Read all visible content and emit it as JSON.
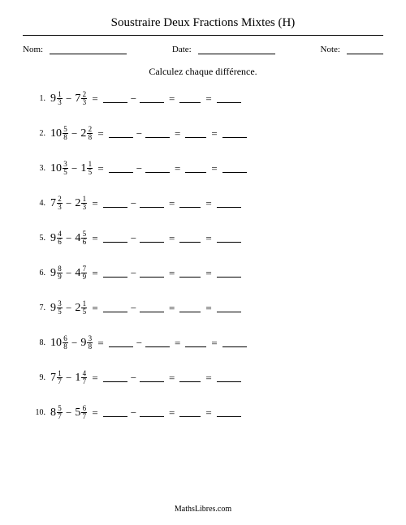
{
  "title": "Soustraire Deux Fractions Mixtes (H)",
  "header": {
    "nom_label": "Nom:",
    "date_label": "Date:",
    "note_label": "Note:"
  },
  "instruction": "Calculez chaque différence.",
  "symbols": {
    "minus": "−",
    "equals": "="
  },
  "problems": [
    {
      "n": "1.",
      "a_whole": "9",
      "a_num": "1",
      "a_den": "3",
      "b_whole": "7",
      "b_num": "2",
      "b_den": "3"
    },
    {
      "n": "2.",
      "a_whole": "10",
      "a_num": "5",
      "a_den": "8",
      "b_whole": "2",
      "b_num": "2",
      "b_den": "8"
    },
    {
      "n": "3.",
      "a_whole": "10",
      "a_num": "3",
      "a_den": "5",
      "b_whole": "1",
      "b_num": "1",
      "b_den": "5"
    },
    {
      "n": "4.",
      "a_whole": "7",
      "a_num": "2",
      "a_den": "3",
      "b_whole": "2",
      "b_num": "1",
      "b_den": "3"
    },
    {
      "n": "5.",
      "a_whole": "9",
      "a_num": "4",
      "a_den": "6",
      "b_whole": "4",
      "b_num": "5",
      "b_den": "6"
    },
    {
      "n": "6.",
      "a_whole": "9",
      "a_num": "8",
      "a_den": "9",
      "b_whole": "4",
      "b_num": "7",
      "b_den": "9"
    },
    {
      "n": "7.",
      "a_whole": "9",
      "a_num": "3",
      "a_den": "5",
      "b_whole": "2",
      "b_num": "1",
      "b_den": "5"
    },
    {
      "n": "8.",
      "a_whole": "10",
      "a_num": "6",
      "a_den": "8",
      "b_whole": "9",
      "b_num": "3",
      "b_den": "8"
    },
    {
      "n": "9.",
      "a_whole": "7",
      "a_num": "1",
      "a_den": "7",
      "b_whole": "1",
      "b_num": "4",
      "b_den": "7"
    },
    {
      "n": "10.",
      "a_whole": "8",
      "a_num": "5",
      "a_den": "7",
      "b_whole": "5",
      "b_num": "6",
      "b_den": "7"
    }
  ],
  "footer": "MathsLibres.com"
}
